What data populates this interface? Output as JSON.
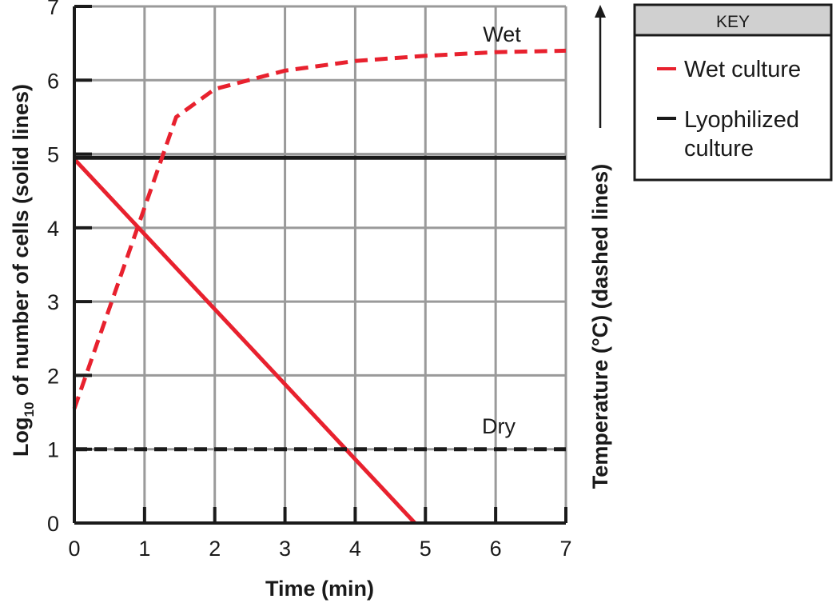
{
  "chart_data": {
    "type": "line",
    "x_axis": {
      "label": "Time (min)",
      "range": [
        0,
        7
      ],
      "ticks": [
        "0",
        "1",
        "2",
        "3",
        "4",
        "5",
        "6",
        "7"
      ]
    },
    "y_axis_left": {
      "label_prefix": "Log",
      "label_subscript": "10",
      "label_suffix": " of number of cells (solid lines)",
      "range": [
        0,
        7
      ],
      "ticks": [
        "0",
        "1",
        "2",
        "3",
        "4",
        "5",
        "6",
        "7"
      ]
    },
    "y_axis_right": {
      "label": "Temperature (°C) (dashed lines)"
    },
    "grid": true,
    "series": [
      {
        "name": "Wet culture",
        "measure": "cells",
        "style": "solid",
        "color": "#e8212e",
        "points": [
          [
            0,
            4.93
          ],
          [
            4.85,
            0
          ]
        ]
      },
      {
        "name": "Lyophilized culture",
        "measure": "cells",
        "style": "solid",
        "color": "#1a1a1a",
        "points": [
          [
            0,
            4.95
          ],
          [
            7,
            4.95
          ]
        ]
      },
      {
        "name": "Wet culture",
        "measure": "temperature",
        "style": "dashed",
        "color": "#e8212e",
        "annotation": "Wet",
        "points": [
          [
            0,
            1.55
          ],
          [
            1.45,
            5.5
          ],
          [
            2.0,
            5.88
          ],
          [
            3.0,
            6.13
          ],
          [
            4.0,
            6.26
          ],
          [
            5.0,
            6.33
          ],
          [
            6.0,
            6.38
          ],
          [
            7.0,
            6.4
          ]
        ]
      },
      {
        "name": "Lyophilized culture",
        "measure": "temperature",
        "style": "dashed",
        "color": "#1a1a1a",
        "annotation": "Dry",
        "points": [
          [
            0,
            1.0
          ],
          [
            7,
            1.0
          ]
        ]
      }
    ],
    "legend": {
      "title": "KEY",
      "placement": "top-right",
      "entries": [
        {
          "line1": "Wet culture",
          "line2": "",
          "color": "#e8212e"
        },
        {
          "line1": "Lyophilized",
          "line2": "culture",
          "color": "#1a1a1a"
        }
      ]
    }
  }
}
